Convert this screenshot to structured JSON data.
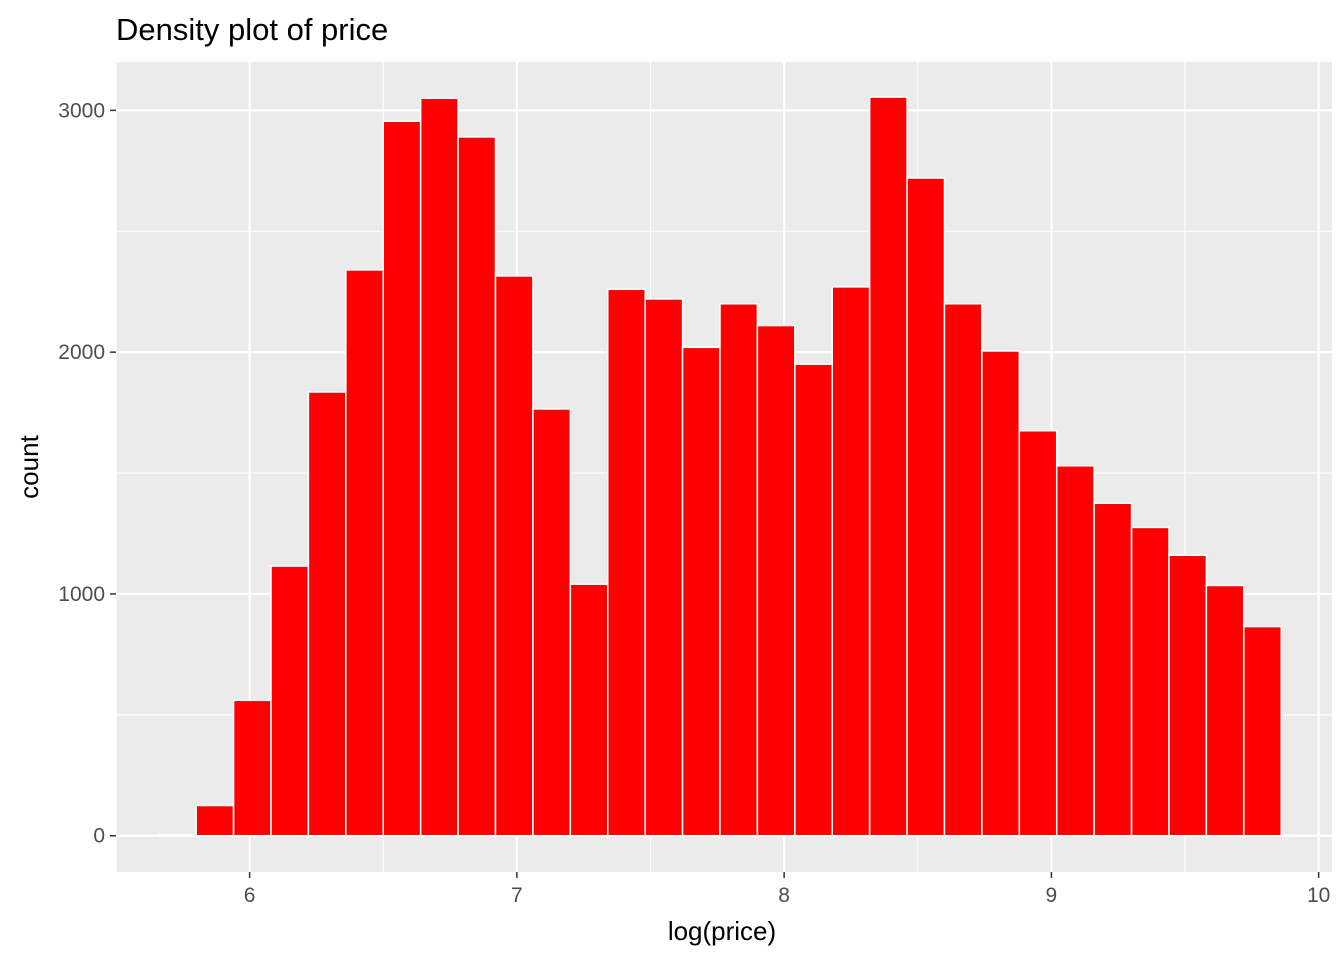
{
  "chart_data": {
    "type": "bar",
    "title": "Density plot of price",
    "xlabel": "log(price)",
    "ylabel": "count",
    "xlim": [
      5.5,
      10.05
    ],
    "ylim": [
      -150,
      3200
    ],
    "x_ticks": [
      6,
      7,
      8,
      9,
      10
    ],
    "x_tick_labels": [
      "6",
      "7",
      "8",
      "9",
      "10"
    ],
    "y_ticks": [
      0,
      1000,
      2000,
      3000
    ],
    "y_tick_labels": [
      "0",
      "1000",
      "2000",
      "3000"
    ],
    "bin_width": 0.14,
    "bin_edges_start": 5.66,
    "x": [
      5.73,
      5.87,
      6.01,
      6.15,
      6.29,
      6.43,
      6.57,
      6.71,
      6.85,
      6.99,
      7.13,
      7.27,
      7.41,
      7.55,
      7.69,
      7.83,
      7.97,
      8.11,
      8.25,
      8.39,
      8.53,
      8.67,
      8.81,
      8.95,
      9.09,
      9.23,
      9.37,
      9.51,
      9.65,
      9.79
    ],
    "values": [
      5,
      125,
      560,
      1115,
      1835,
      2340,
      2955,
      3050,
      2890,
      2315,
      1765,
      1040,
      2260,
      2220,
      2020,
      2200,
      2110,
      1950,
      2270,
      3055,
      2720,
      2200,
      2005,
      1675,
      1530,
      1375,
      1275,
      1160,
      1035,
      865
    ],
    "bar_color": "#FF0000",
    "bar_outline": "#FFFFFF",
    "panel_background": "#EBEBEB",
    "grid_color": "#FFFFFF",
    "grid": true,
    "legend": "none"
  }
}
